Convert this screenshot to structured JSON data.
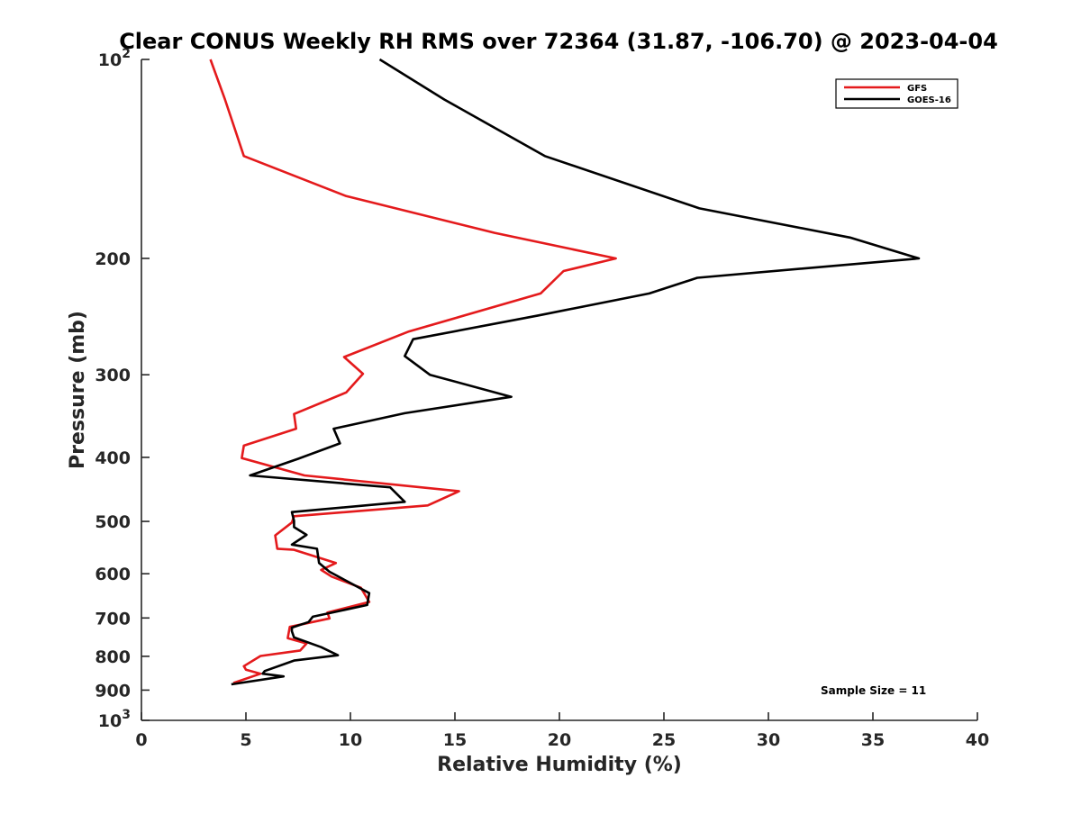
{
  "chart_data": {
    "type": "line",
    "title": "Clear CONUS Weekly RH RMS over 72364 (31.87, -106.70) @ 2023-04-04",
    "xlabel": "Relative Humidity (%)",
    "ylabel": "Pressure (mb)",
    "xlim": [
      0,
      40
    ],
    "ylim": [
      100,
      1000
    ],
    "y_scale": "log",
    "y_reversed": true,
    "grid": false,
    "legend_position": "top-right",
    "x_ticks": [
      0,
      5,
      10,
      15,
      20,
      25,
      30,
      35,
      40
    ],
    "x_tick_labels": [
      "0",
      "5",
      "10",
      "15",
      "20",
      "25",
      "30",
      "35",
      "40"
    ],
    "y_ticks": [
      {
        "value": 100,
        "label": "10",
        "sup": "2"
      },
      {
        "value": 200,
        "label": "200",
        "sup": ""
      },
      {
        "value": 300,
        "label": "300",
        "sup": ""
      },
      {
        "value": 400,
        "label": "400",
        "sup": ""
      },
      {
        "value": 500,
        "label": "500",
        "sup": ""
      },
      {
        "value": 600,
        "label": "600",
        "sup": ""
      },
      {
        "value": 700,
        "label": "700",
        "sup": ""
      },
      {
        "value": 800,
        "label": "800",
        "sup": ""
      },
      {
        "value": 900,
        "label": "900",
        "sup": ""
      },
      {
        "value": 1000,
        "label": "10",
        "sup": "3"
      }
    ],
    "annotation": "Sample Size = 11",
    "series": [
      {
        "name": "GFS",
        "color": "#e41a1c",
        "points": [
          [
            3.3,
            100
          ],
          [
            4.0,
            115
          ],
          [
            4.9,
            140
          ],
          [
            9.8,
            161
          ],
          [
            16.9,
            183
          ],
          [
            22.7,
            200
          ],
          [
            20.2,
            209
          ],
          [
            19.1,
            226
          ],
          [
            12.8,
            258
          ],
          [
            9.7,
            282
          ],
          [
            10.6,
            299
          ],
          [
            9.8,
            319
          ],
          [
            7.3,
            344
          ],
          [
            7.4,
            362
          ],
          [
            4.9,
            384
          ],
          [
            4.8,
            401
          ],
          [
            7.8,
            426
          ],
          [
            15.2,
            450
          ],
          [
            13.7,
            473
          ],
          [
            7.3,
            491
          ],
          [
            7.2,
            502
          ],
          [
            6.4,
            525
          ],
          [
            6.5,
            550
          ],
          [
            7.3,
            552
          ],
          [
            9.3,
            578
          ],
          [
            8.6,
            592
          ],
          [
            9.1,
            606
          ],
          [
            10.5,
            630
          ],
          [
            10.9,
            662
          ],
          [
            8.9,
            687
          ],
          [
            9.0,
            701
          ],
          [
            7.1,
            722
          ],
          [
            7.0,
            751
          ],
          [
            7.9,
            765
          ],
          [
            7.6,
            784
          ],
          [
            5.7,
            799
          ],
          [
            4.9,
            828
          ],
          [
            5.0,
            838
          ],
          [
            5.7,
            850
          ],
          [
            4.4,
            878
          ]
        ]
      },
      {
        "name": "GOES-16",
        "color": "#000000",
        "points": [
          [
            11.4,
            100
          ],
          [
            14.5,
            115
          ],
          [
            19.3,
            140
          ],
          [
            26.7,
            168
          ],
          [
            33.9,
            186
          ],
          [
            37.2,
            200
          ],
          [
            26.6,
            214
          ],
          [
            24.3,
            226
          ],
          [
            19.0,
            244
          ],
          [
            13.0,
            265
          ],
          [
            12.6,
            281
          ],
          [
            13.8,
            300
          ],
          [
            17.7,
            324
          ],
          [
            12.6,
            343
          ],
          [
            9.2,
            362
          ],
          [
            9.5,
            381
          ],
          [
            7.5,
            402
          ],
          [
            5.2,
            426
          ],
          [
            11.9,
            444
          ],
          [
            12.6,
            467
          ],
          [
            7.2,
            484
          ],
          [
            7.3,
            499
          ],
          [
            7.3,
            510
          ],
          [
            7.9,
            524
          ],
          [
            7.2,
            542
          ],
          [
            8.4,
            550
          ],
          [
            8.5,
            578
          ],
          [
            9.0,
            596
          ],
          [
            10.9,
            642
          ],
          [
            10.8,
            669
          ],
          [
            8.2,
            697
          ],
          [
            8.0,
            710
          ],
          [
            7.2,
            724
          ],
          [
            7.2,
            733
          ],
          [
            7.3,
            749
          ],
          [
            8.6,
            775
          ],
          [
            9.4,
            797
          ],
          [
            7.3,
            812
          ],
          [
            5.9,
            842
          ],
          [
            5.8,
            850
          ],
          [
            6.8,
            858
          ],
          [
            4.3,
            882
          ]
        ]
      }
    ]
  }
}
